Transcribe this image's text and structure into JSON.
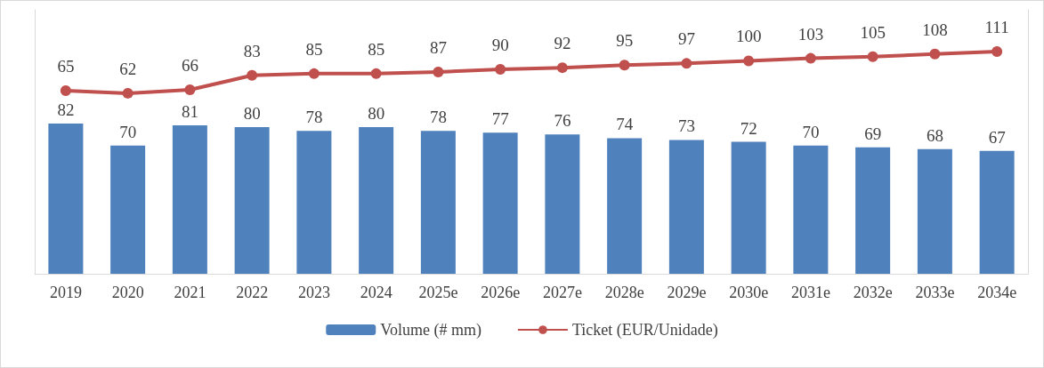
{
  "chart_data": {
    "type": "bar",
    "categories": [
      "2019",
      "2020",
      "2021",
      "2022",
      "2023",
      "2024",
      "2025e",
      "2026e",
      "2027e",
      "2028e",
      "2029e",
      "2030e",
      "2031e",
      "2032e",
      "2033e",
      "2034e"
    ],
    "series": [
      {
        "name": "Volume (# mm)",
        "type": "bar",
        "color": "#4f81bd",
        "values": [
          82,
          70,
          81,
          80,
          78,
          80,
          78,
          77,
          76,
          74,
          73,
          72,
          70,
          69,
          68,
          67
        ]
      },
      {
        "name": "Ticket (EUR/Unidade)",
        "type": "line",
        "axis": "y2",
        "color": "#c0504d",
        "values": [
          65,
          62,
          66,
          83,
          85,
          85,
          87,
          90,
          92,
          95,
          97,
          100,
          103,
          105,
          108,
          111
        ]
      }
    ],
    "ylim": [
      0,
      144
    ],
    "y2lim": [
      -150,
      160
    ],
    "data_labels": true,
    "legend": "bottom",
    "marker": "circle",
    "tick_labels": "x"
  }
}
